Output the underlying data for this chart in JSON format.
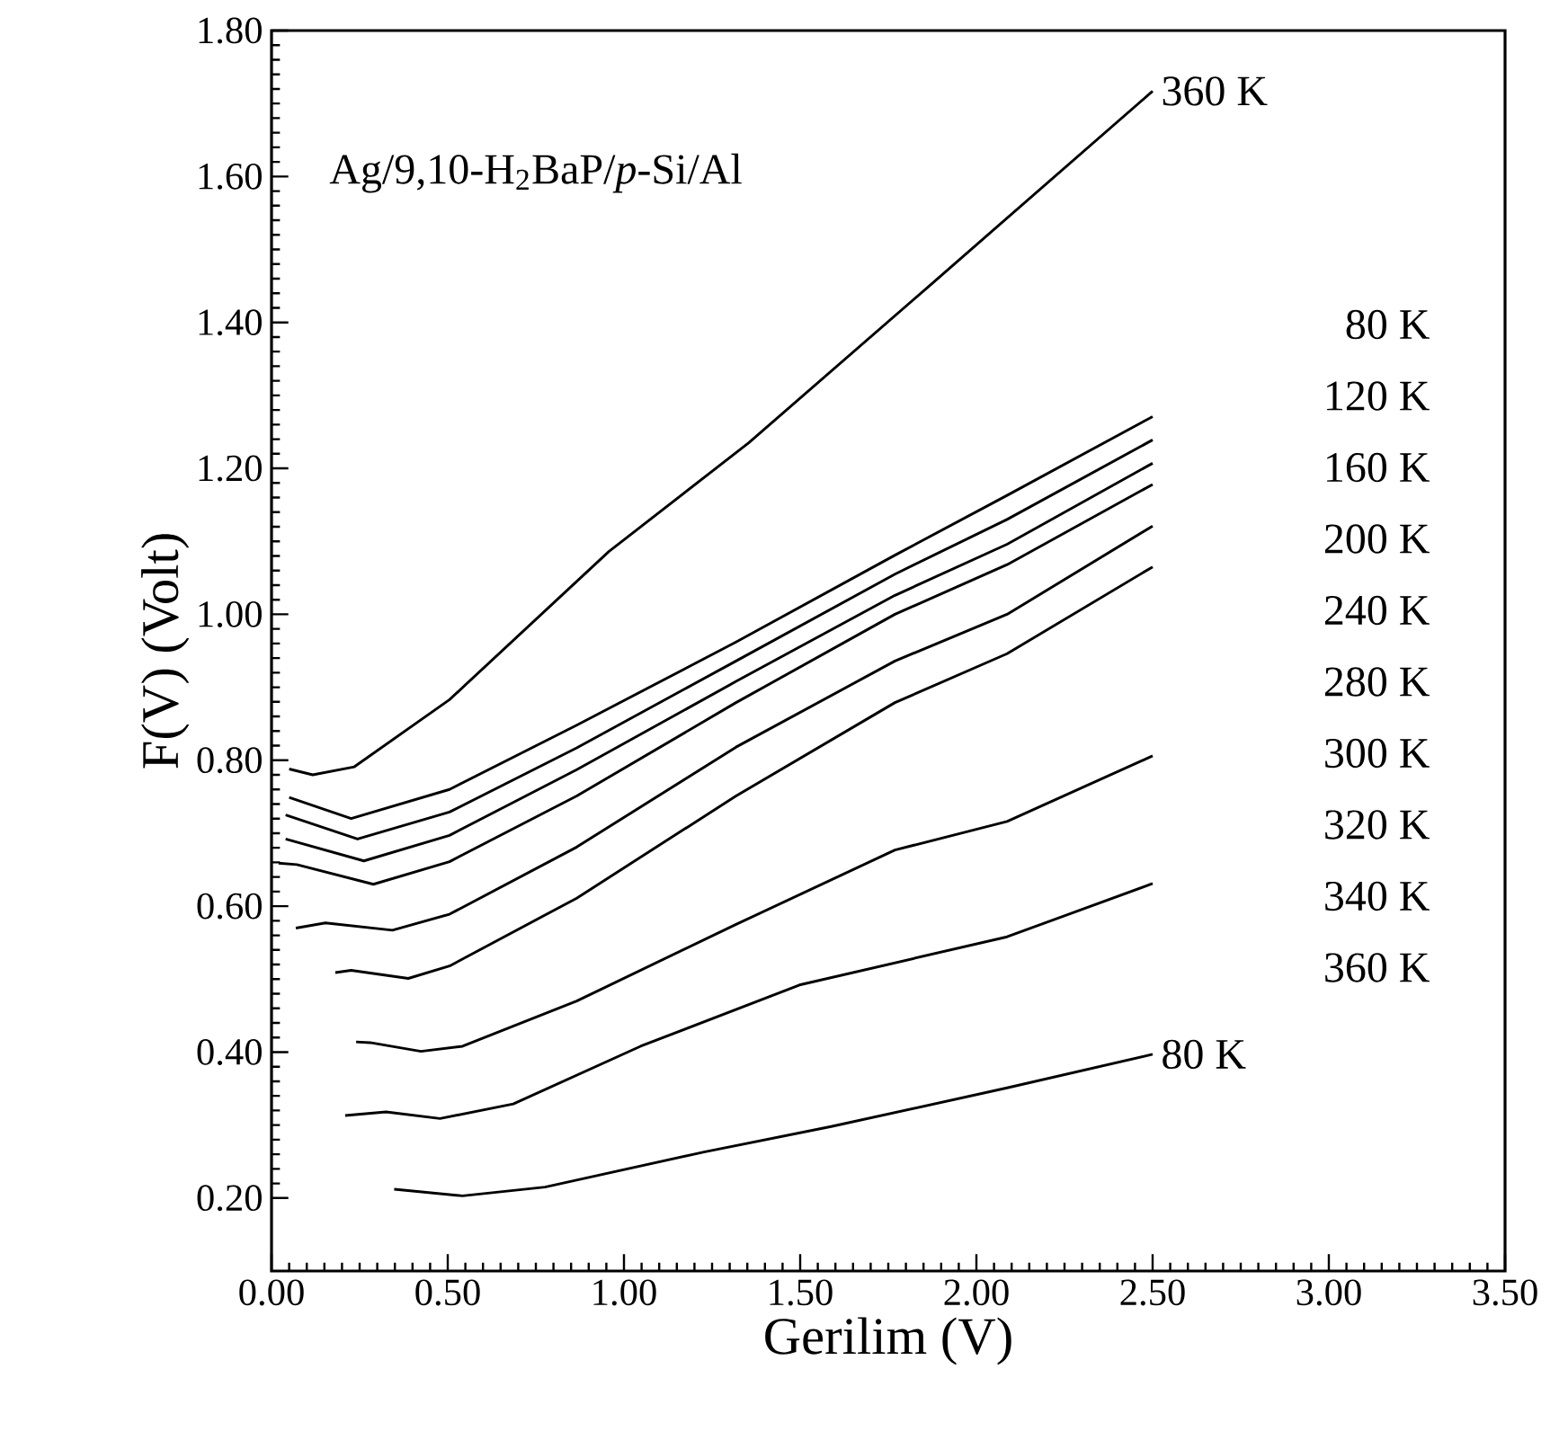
{
  "chart_data": {
    "type": "line",
    "xlabel": "Gerilim (V)",
    "ylabel": "F(V) (Volt)",
    "xlim": [
      0,
      3.5
    ],
    "ylim": [
      0.1,
      1.8
    ],
    "xticks": [
      {
        "value": 0,
        "label": "0.00"
      },
      {
        "value": 0.5,
        "label": "0.50"
      },
      {
        "value": 1,
        "label": "1.00"
      },
      {
        "value": 1.5,
        "label": "1.50"
      },
      {
        "value": 2,
        "label": "2.00"
      },
      {
        "value": 2.5,
        "label": "2.50"
      },
      {
        "value": 3,
        "label": "3.00"
      },
      {
        "value": 3.5,
        "label": "3.50"
      }
    ],
    "yticks": [
      {
        "value": 0.2,
        "label": "0.20"
      },
      {
        "value": 0.4,
        "label": "0.40"
      },
      {
        "value": 0.6,
        "label": "0.60"
      },
      {
        "value": 0.8,
        "label": "0.80"
      },
      {
        "value": 1.0,
        "label": "1.00"
      },
      {
        "value": 1.2,
        "label": "1.20"
      },
      {
        "value": 1.4,
        "label": "1.40"
      },
      {
        "value": 1.6,
        "label": "1.60"
      },
      {
        "value": 1.8,
        "label": "1.80"
      }
    ],
    "grid": false,
    "legend": false,
    "marker": "none",
    "line_style": "solid",
    "annotations": [
      "Ag/9,10-H$_{2}$BaP/*p*-Si/Al",
      "80 K",
      "120 K",
      "160 K",
      "200 K",
      "240 K",
      "280 K",
      "300 K",
      "320 K",
      "340 K",
      "360 K"
    ],
    "series": [
      {
        "name": "360 K",
        "color": "#000000",
        "x": [
          0.05,
          0.117,
          0.235,
          0.505,
          0.957,
          1.354,
          1.859,
          2.5
        ],
        "values": [
          0.788,
          0.78,
          0.791,
          0.883,
          1.086,
          1.235,
          1.447,
          1.717
        ]
      },
      {
        "color": "#000000",
        "x": [
          0.05,
          0.226,
          0.505,
          0.866,
          1.318,
          1.769,
          2.087,
          2.5
        ],
        "values": [
          0.749,
          0.72,
          0.76,
          0.848,
          0.962,
          1.081,
          1.163,
          1.271
        ]
      },
      {
        "color": "#000000",
        "x": [
          0.04,
          0.244,
          0.505,
          0.866,
          1.318,
          1.769,
          2.087,
          2.5
        ],
        "values": [
          0.725,
          0.692,
          0.729,
          0.817,
          0.936,
          1.055,
          1.13,
          1.239
        ]
      },
      {
        "color": "#000000",
        "x": [
          0.04,
          0.262,
          0.505,
          0.866,
          1.318,
          1.769,
          2.087,
          2.5
        ],
        "values": [
          0.692,
          0.662,
          0.697,
          0.787,
          0.908,
          1.026,
          1.096,
          1.207
        ]
      },
      {
        "color": "#000000",
        "x": [
          0.02,
          0.072,
          0.289,
          0.505,
          0.866,
          1.318,
          1.769,
          2.087,
          2.5
        ],
        "values": [
          0.659,
          0.657,
          0.63,
          0.661,
          0.751,
          0.879,
          1.0,
          1.068,
          1.178
        ]
      },
      {
        "color": "#000000",
        "x": [
          0.069,
          0.153,
          0.343,
          0.505,
          0.866,
          1.318,
          1.769,
          2.087,
          2.5
        ],
        "values": [
          0.57,
          0.577,
          0.567,
          0.589,
          0.681,
          0.818,
          0.936,
          1.0,
          1.121
        ]
      },
      {
        "color": "#000000",
        "x": [
          0.181,
          0.226,
          0.388,
          0.505,
          0.866,
          1.318,
          1.769,
          2.087,
          2.5
        ],
        "values": [
          0.509,
          0.512,
          0.501,
          0.518,
          0.611,
          0.751,
          0.879,
          0.946,
          1.065
        ]
      },
      {
        "color": "#000000",
        "x": [
          0.24,
          0.28,
          0.424,
          0.542,
          0.866,
          1.318,
          1.769,
          2.087,
          2.5
        ],
        "values": [
          0.414,
          0.413,
          0.401,
          0.408,
          0.47,
          0.575,
          0.677,
          0.716,
          0.806
        ]
      },
      {
        "color": "#000000",
        "x": [
          0.209,
          0.325,
          0.478,
          0.686,
          1.047,
          1.498,
          2.087,
          2.5
        ],
        "values": [
          0.313,
          0.318,
          0.309,
          0.329,
          0.408,
          0.492,
          0.558,
          0.631
        ]
      },
      {
        "name": "80 K",
        "color": "#000000",
        "x": [
          0.348,
          0.542,
          0.776,
          1.227,
          1.588,
          2.087,
          2.5
        ],
        "values": [
          0.212,
          0.203,
          0.215,
          0.263,
          0.298,
          0.351,
          0.397
        ]
      }
    ]
  }
}
